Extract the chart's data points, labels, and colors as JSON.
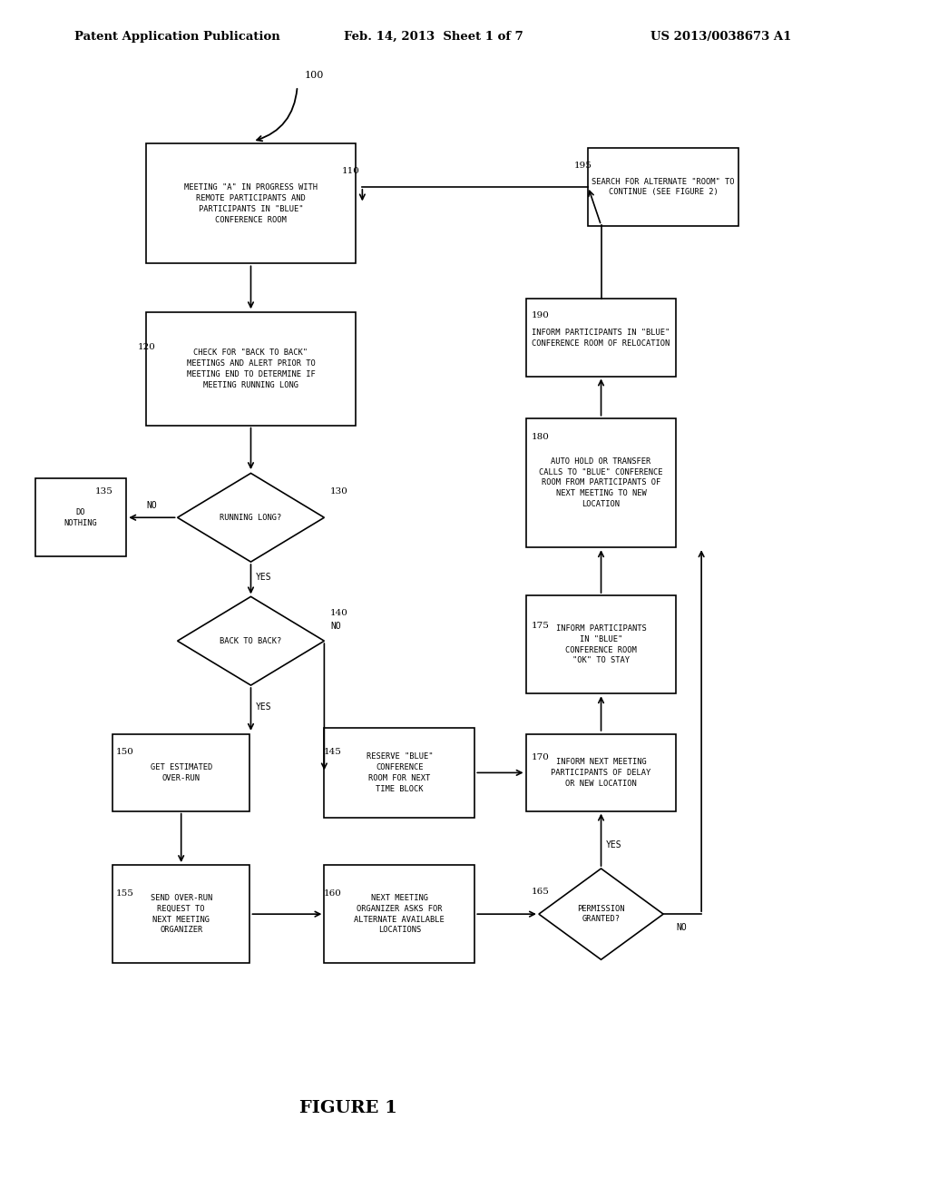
{
  "title_left": "Patent Application Publication",
  "title_mid": "Feb. 14, 2013  Sheet 1 of 7",
  "title_right": "US 2013/0038673 A1",
  "figure_label": "FIGURE 1",
  "bg_color": "#ffffff"
}
